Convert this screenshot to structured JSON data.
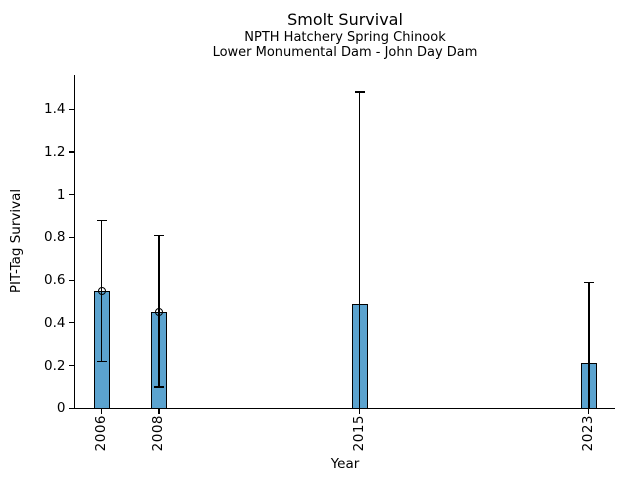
{
  "chart_data": {
    "type": "bar",
    "title": "Smolt Survival",
    "subtitle_lines": [
      "NPTH Hatchery Spring Chinook",
      "Lower Monumental Dam - John Day Dam"
    ],
    "xlabel": "Year",
    "ylabel": "PIT-Tag Survival",
    "categories": [
      "2006",
      "2008",
      "2015",
      "2023"
    ],
    "x_years": [
      2006,
      2008,
      2015,
      2023
    ],
    "values": [
      0.55,
      0.45,
      0.49,
      0.21
    ],
    "error_upper": [
      0.88,
      0.81,
      1.48,
      0.59
    ],
    "error_lower": [
      0.22,
      0.1,
      0.0,
      0.0
    ],
    "point_marker_on": [
      true,
      true,
      false,
      false
    ],
    "yticks": {
      "labels": [
        "0",
        "0.2",
        "0.4",
        "0.6",
        "0.8",
        "1",
        "1.2",
        "1.4"
      ],
      "values": [
        0,
        0.2,
        0.4,
        0.6,
        0.8,
        1.0,
        1.2,
        1.4
      ]
    },
    "ylim": [
      0,
      1.56
    ],
    "xlim": [
      2005.0,
      2023.95
    ],
    "grid": false,
    "legend": null,
    "colors": {
      "bar_fill": "#5BA3CF",
      "bar_edge": "#000000",
      "error_bar": "#000000",
      "text": "#000000",
      "background": "#FFFFFF"
    }
  }
}
